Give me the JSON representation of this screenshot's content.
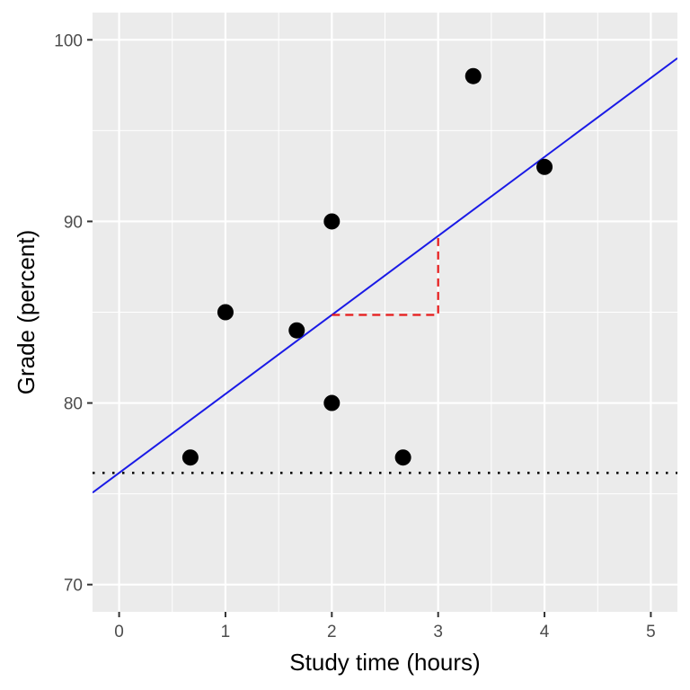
{
  "chart_data": {
    "type": "scatter",
    "title": "",
    "xlabel": "Study time (hours)",
    "ylabel": "Grade (percent)",
    "xlim": [
      -0.25,
      5.25
    ],
    "ylim": [
      68.5,
      101.5
    ],
    "x_ticks": [
      0,
      1,
      2,
      3,
      4,
      5
    ],
    "x_tick_labels": [
      "0",
      "1",
      "2",
      "3",
      "4",
      "5"
    ],
    "y_ticks": [
      70,
      80,
      90,
      100
    ],
    "y_tick_labels": [
      "70",
      "80",
      "90",
      "100"
    ],
    "grid": true,
    "points": [
      {
        "x": 0.67,
        "y": 77
      },
      {
        "x": 1.0,
        "y": 85
      },
      {
        "x": 1.67,
        "y": 84
      },
      {
        "x": 2.0,
        "y": 90
      },
      {
        "x": 2.0,
        "y": 80
      },
      {
        "x": 2.67,
        "y": 77
      },
      {
        "x": 3.33,
        "y": 98
      },
      {
        "x": 4.0,
        "y": 93
      }
    ],
    "regression_line": {
      "intercept": 76.15,
      "slope": 4.35,
      "color": "#1a1ae6"
    },
    "mean_line": {
      "y": 76.15,
      "style": "dotted",
      "color": "#000000"
    },
    "slope_triangle": {
      "x_start": 2,
      "x_end": 3,
      "color": "#e61a1a",
      "style": "dashed"
    },
    "colors": {
      "panel_background": "#ebebeb",
      "grid": "#ffffff",
      "points": "#000000"
    }
  }
}
